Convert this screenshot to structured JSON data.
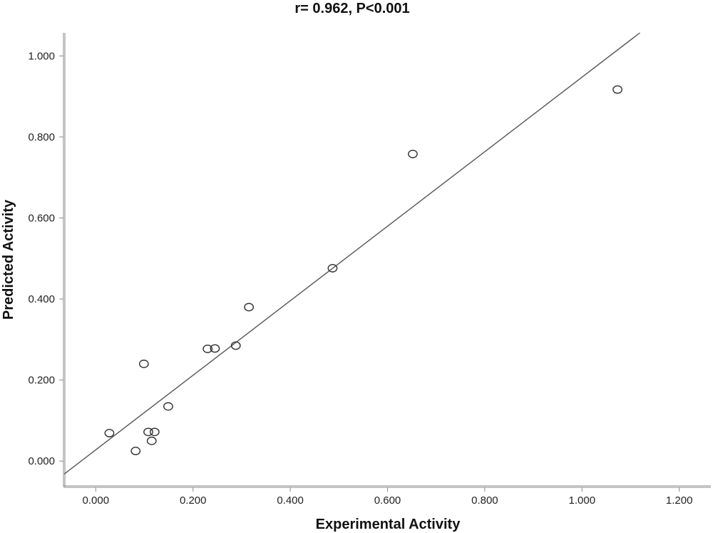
{
  "chart_data": {
    "type": "scatter",
    "title": "r= 0.962, P<0.001",
    "xlabel": "Experimental Activity",
    "ylabel": "Predicted Activity",
    "xlim": [
      -0.065,
      1.265
    ],
    "ylim": [
      -0.063,
      1.057
    ],
    "x_ticks": [
      0.0,
      0.2,
      0.4,
      0.6,
      0.8,
      1.0,
      1.2
    ],
    "x_tick_labels": [
      "0.000",
      "0.200",
      "0.400",
      "0.600",
      "0.800",
      "1.000",
      "1.200"
    ],
    "y_ticks": [
      0.0,
      0.2,
      0.4,
      0.6,
      0.8,
      1.0
    ],
    "y_tick_labels": [
      "0.000",
      "0.200",
      "0.400",
      "0.600",
      "0.800",
      "1.000"
    ],
    "grid": false,
    "legend": "none",
    "points": [
      {
        "x": 0.028,
        "y": 0.069
      },
      {
        "x": 0.082,
        "y": 0.025
      },
      {
        "x": 0.099,
        "y": 0.24
      },
      {
        "x": 0.108,
        "y": 0.072
      },
      {
        "x": 0.115,
        "y": 0.05
      },
      {
        "x": 0.121,
        "y": 0.072
      },
      {
        "x": 0.149,
        "y": 0.135
      },
      {
        "x": 0.23,
        "y": 0.277
      },
      {
        "x": 0.245,
        "y": 0.278
      },
      {
        "x": 0.288,
        "y": 0.285
      },
      {
        "x": 0.315,
        "y": 0.38
      },
      {
        "x": 0.487,
        "y": 0.476
      },
      {
        "x": 0.652,
        "y": 0.758
      },
      {
        "x": 1.073,
        "y": 0.917
      }
    ],
    "fit_line": {
      "start": {
        "x": -0.065,
        "y": -0.032
      },
      "end": {
        "x": 1.119,
        "y": 1.057
      }
    },
    "colors": {
      "marker": "#333333",
      "line": "#555555",
      "axis": "#777777"
    }
  }
}
